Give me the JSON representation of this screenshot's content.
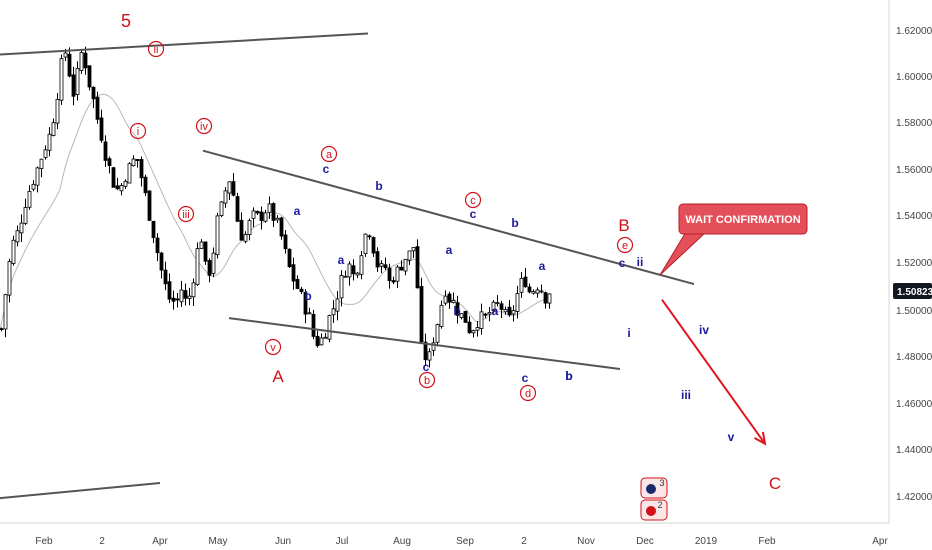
{
  "chart_data": {
    "type": "candlestick",
    "x_tick_labels": [
      "Feb",
      "2",
      "Apr",
      "May",
      "Jun",
      "Jul",
      "Aug",
      "Sep",
      "2",
      "Nov",
      "Dec",
      "2019",
      "Feb",
      "Apr"
    ],
    "y_tick_labels": [
      "1.62000",
      "1.60000",
      "1.58000",
      "1.56000",
      "1.54000",
      "1.52000",
      "1.50000",
      "1.48000",
      "1.46000",
      "1.44000",
      "1.42000"
    ],
    "ylim": [
      1.412,
      1.631
    ],
    "last_price": "1.50823",
    "callout": "WAIT CONFIRMATION",
    "moving_average": true,
    "colors": {
      "up": "#000000",
      "down": "#000000",
      "ma": "#b8b8b8",
      "trendline": "#555555",
      "projection": "#e0161e",
      "callout": "#e4505a",
      "price_tag": "#131722"
    },
    "wave_labels_red": [
      "5",
      "ii",
      "i",
      "iv",
      "iii",
      "v",
      "A",
      "a",
      "b",
      "c",
      "d",
      "e",
      "B",
      "C"
    ],
    "wave_labels_blue": [
      "a",
      "b",
      "c",
      "b",
      "a",
      "c",
      "b",
      "a",
      "b",
      "c",
      "a",
      "a",
      "b",
      "c",
      "b",
      "c",
      "ii",
      "i",
      "iv",
      "iii",
      "v"
    ],
    "badges": [
      "3",
      "2"
    ],
    "close_anchors": [
      {
        "t": 0,
        "v": 1.492
      },
      {
        "t": 4,
        "v": 1.507
      },
      {
        "t": 10,
        "v": 1.527
      },
      {
        "t": 17,
        "v": 1.534
      },
      {
        "t": 25,
        "v": 1.548
      },
      {
        "t": 33,
        "v": 1.557
      },
      {
        "t": 42,
        "v": 1.568
      },
      {
        "t": 50,
        "v": 1.577
      },
      {
        "t": 54,
        "v": 1.588
      },
      {
        "t": 58,
        "v": 1.598
      },
      {
        "t": 62,
        "v": 1.612
      },
      {
        "t": 66,
        "v": 1.609
      },
      {
        "t": 69,
        "v": 1.598
      },
      {
        "t": 72,
        "v": 1.593
      },
      {
        "t": 74,
        "v": 1.597
      },
      {
        "t": 79,
        "v": 1.607
      },
      {
        "t": 81,
        "v": 1.613
      },
      {
        "t": 85,
        "v": 1.603
      },
      {
        "t": 88,
        "v": 1.597
      },
      {
        "t": 91,
        "v": 1.592
      },
      {
        "t": 96,
        "v": 1.582
      },
      {
        "t": 100,
        "v": 1.575
      },
      {
        "t": 104,
        "v": 1.567
      },
      {
        "t": 108,
        "v": 1.561
      },
      {
        "t": 113,
        "v": 1.553
      },
      {
        "t": 118,
        "v": 1.551
      },
      {
        "t": 123,
        "v": 1.557
      },
      {
        "t": 128,
        "v": 1.561
      },
      {
        "t": 132,
        "v": 1.564
      },
      {
        "t": 135,
        "v": 1.566
      },
      {
        "t": 140,
        "v": 1.557
      },
      {
        "t": 145,
        "v": 1.547
      },
      {
        "t": 150,
        "v": 1.537
      },
      {
        "t": 156,
        "v": 1.525
      },
      {
        "t": 162,
        "v": 1.513
      },
      {
        "t": 168,
        "v": 1.505
      },
      {
        "t": 175,
        "v": 1.503
      },
      {
        "t": 180,
        "v": 1.509
      },
      {
        "t": 185,
        "v": 1.503
      },
      {
        "t": 190,
        "v": 1.508
      },
      {
        "t": 195,
        "v": 1.524
      },
      {
        "t": 200,
        "v": 1.531
      },
      {
        "t": 205,
        "v": 1.515
      },
      {
        "t": 210,
        "v": 1.518
      },
      {
        "t": 215,
        "v": 1.537
      },
      {
        "t": 220,
        "v": 1.544
      },
      {
        "t": 225,
        "v": 1.553
      },
      {
        "t": 229,
        "v": 1.557
      },
      {
        "t": 233,
        "v": 1.547
      },
      {
        "t": 238,
        "v": 1.533
      },
      {
        "t": 243,
        "v": 1.531
      },
      {
        "t": 248,
        "v": 1.537
      },
      {
        "t": 253,
        "v": 1.541
      },
      {
        "t": 258,
        "v": 1.539
      },
      {
        "t": 263,
        "v": 1.543
      },
      {
        "t": 268,
        "v": 1.543
      },
      {
        "t": 273,
        "v": 1.539
      },
      {
        "t": 278,
        "v": 1.535
      },
      {
        "t": 283,
        "v": 1.526
      },
      {
        "t": 288,
        "v": 1.518
      },
      {
        "t": 293,
        "v": 1.512
      },
      {
        "t": 298,
        "v": 1.508
      },
      {
        "t": 303,
        "v": 1.502
      },
      {
        "t": 308,
        "v": 1.497
      },
      {
        "t": 313,
        "v": 1.487
      },
      {
        "t": 318,
        "v": 1.486
      },
      {
        "t": 323,
        "v": 1.49
      },
      {
        "t": 328,
        "v": 1.497
      },
      {
        "t": 333,
        "v": 1.502
      },
      {
        "t": 338,
        "v": 1.51
      },
      {
        "t": 343,
        "v": 1.517
      },
      {
        "t": 348,
        "v": 1.519
      },
      {
        "t": 353,
        "v": 1.514
      },
      {
        "t": 358,
        "v": 1.522
      },
      {
        "t": 363,
        "v": 1.532
      },
      {
        "t": 368,
        "v": 1.534
      },
      {
        "t": 373,
        "v": 1.525
      },
      {
        "t": 378,
        "v": 1.516
      },
      {
        "t": 383,
        "v": 1.52
      },
      {
        "t": 388,
        "v": 1.512
      },
      {
        "t": 393,
        "v": 1.515
      },
      {
        "t": 398,
        "v": 1.518
      },
      {
        "t": 403,
        "v": 1.522
      },
      {
        "t": 408,
        "v": 1.524
      },
      {
        "t": 413,
        "v": 1.528
      },
      {
        "t": 416,
        "v": 1.51
      },
      {
        "t": 419,
        "v": 1.485
      },
      {
        "t": 423,
        "v": 1.48
      },
      {
        "t": 428,
        "v": 1.48
      },
      {
        "t": 433,
        "v": 1.49
      },
      {
        "t": 438,
        "v": 1.498
      },
      {
        "t": 443,
        "v": 1.51
      },
      {
        "t": 448,
        "v": 1.505
      },
      {
        "t": 453,
        "v": 1.503
      },
      {
        "t": 458,
        "v": 1.498
      },
      {
        "t": 463,
        "v": 1.497
      },
      {
        "t": 468,
        "v": 1.492
      },
      {
        "t": 473,
        "v": 1.493
      },
      {
        "t": 478,
        "v": 1.497
      },
      {
        "t": 483,
        "v": 1.496
      },
      {
        "t": 488,
        "v": 1.499
      },
      {
        "t": 493,
        "v": 1.501
      },
      {
        "t": 498,
        "v": 1.503
      },
      {
        "t": 503,
        "v": 1.498
      },
      {
        "t": 508,
        "v": 1.496
      },
      {
        "t": 513,
        "v": 1.502
      },
      {
        "t": 518,
        "v": 1.51
      },
      {
        "t": 523,
        "v": 1.514
      },
      {
        "t": 528,
        "v": 1.508
      },
      {
        "t": 533,
        "v": 1.509
      },
      {
        "t": 538,
        "v": 1.512
      },
      {
        "t": 543,
        "v": 1.505
      },
      {
        "t": 548,
        "v": 1.508
      }
    ],
    "trendlines": [
      {
        "t1": 0,
        "v1": 1.6095,
        "t2": 368,
        "v2": 1.6185
      },
      {
        "t1": 203,
        "v1": 1.5683,
        "t2": 694,
        "v2": 1.5112
      },
      {
        "t1": 229,
        "v1": 1.4966,
        "t2": 620,
        "v2": 1.4748
      },
      {
        "t1": 0,
        "v1": 1.4195,
        "t2": 160,
        "v2": 1.426
      }
    ],
    "projection": {
      "t1": 662,
      "v1": 1.5045,
      "t2": 765,
      "v2": 1.4428
    }
  }
}
